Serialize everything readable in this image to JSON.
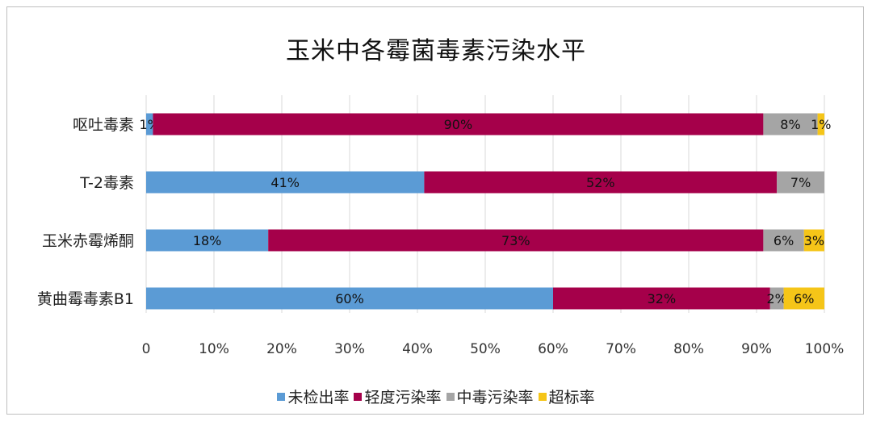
{
  "chart_data": {
    "type": "bar",
    "orientation": "horizontal",
    "stacked": true,
    "title": "玉米中各霉菌毒素污染水平",
    "categories": [
      "呕吐毒素",
      "T-2毒素",
      "玉米赤霉烯酮",
      "黄曲霉毒素B1"
    ],
    "series": [
      {
        "name": "未检出率",
        "color": "#5b9bd5",
        "values": [
          1,
          41,
          18,
          60
        ]
      },
      {
        "name": "轻度污染率",
        "color": "#a5004a",
        "values": [
          90,
          52,
          73,
          32
        ]
      },
      {
        "name": "中毒污染率",
        "color": "#a5a5a5",
        "values": [
          8,
          7,
          6,
          2
        ]
      },
      {
        "name": "超标率",
        "color": "#f5c518",
        "values": [
          1,
          0,
          3,
          6
        ]
      }
    ],
    "data_labels": [
      [
        "1%",
        "41%",
        "18%",
        "60%"
      ],
      [
        "90%",
        "52%",
        "73%",
        "32%"
      ],
      [
        "8%",
        "7%",
        "6%",
        "2%"
      ],
      [
        "1%",
        "",
        "3%",
        "6%"
      ]
    ],
    "xlim": [
      0,
      100
    ],
    "x_ticks": [
      "0",
      "10%",
      "20%",
      "30%",
      "40%",
      "50%",
      "60%",
      "70%",
      "80%",
      "90%",
      "100%"
    ],
    "grid": true,
    "legend_position": "bottom"
  }
}
